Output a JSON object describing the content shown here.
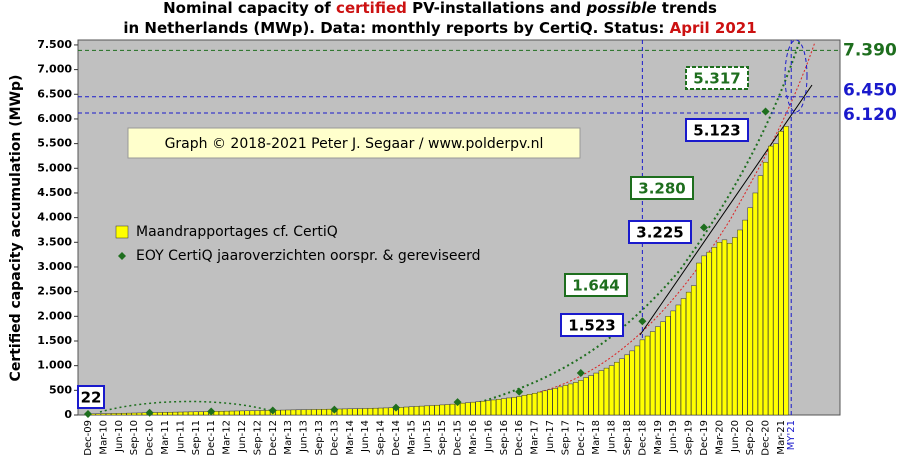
{
  "chart_data": {
    "type": "bar",
    "title_segments": [
      "Nominal capacity of ",
      "certified",
      " PV-installations and ",
      "possible",
      " trends",
      "in Netherlands (MWp). Data: monthly reports by CertiQ. Status: ",
      "April 2021"
    ],
    "y_label": "Certified capacity accumulation (MWp)",
    "credit": "Graph © 2018-2021 Peter J. Segaar / www.polderpv.nl",
    "categories": [
      "Dec-09",
      null,
      null,
      "Mar-10",
      null,
      null,
      "Jun-10",
      null,
      null,
      "Sep-10",
      null,
      null,
      "Dec-10",
      null,
      null,
      "Mar-11",
      null,
      null,
      "Jun-11",
      null,
      null,
      "Sep-11",
      null,
      null,
      "Dec-11",
      null,
      null,
      "Mar-12",
      null,
      null,
      "Jun-12",
      null,
      null,
      "Sep-12",
      null,
      null,
      "Dec-12",
      null,
      null,
      "Mar-13",
      null,
      null,
      "Jun-13",
      null,
      null,
      "Sep-13",
      null,
      null,
      "Dec-13",
      null,
      null,
      "Mar-14",
      null,
      null,
      "Jun-14",
      null,
      null,
      "Sep-14",
      null,
      null,
      "Dec-14",
      null,
      null,
      "Mar-15",
      null,
      null,
      "Jun-15",
      null,
      null,
      "Sep-15",
      null,
      null,
      "Dec-15",
      null,
      null,
      "Mar-16",
      null,
      null,
      "Jun-16",
      null,
      null,
      "Sep-16",
      null,
      null,
      "Dec-16",
      null,
      null,
      "Mar-17",
      null,
      null,
      "Jun-17",
      null,
      null,
      "Sep-17",
      null,
      null,
      "Dec-17",
      null,
      null,
      "Mar-18",
      null,
      null,
      "Jun-18",
      null,
      null,
      "Sep-18",
      null,
      null,
      "Dec-18",
      null,
      null,
      "Mar-19",
      null,
      null,
      "Jun-19",
      null,
      null,
      "Sep-19",
      null,
      null,
      "Dec-19",
      null,
      null,
      "Mar-20",
      null,
      null,
      "Jun-20",
      null,
      null,
      "Sep-20",
      null,
      null,
      "Dec-20",
      null,
      null,
      "Mar-21",
      null,
      "MY'21"
    ],
    "series": [
      {
        "name": "Maandrapportages cf. CertiQ",
        "type": "bar",
        "color": "#ffff00",
        "values": [
          22,
          24,
          26,
          28,
          30,
          32,
          34,
          36,
          38,
          40,
          42,
          45,
          48,
          50,
          52,
          54,
          56,
          58,
          60,
          62,
          64,
          66,
          68,
          70,
          72,
          74,
          76,
          78,
          80,
          82,
          84,
          86,
          88,
          90,
          92,
          94,
          96,
          98,
          100,
          102,
          104,
          106,
          108,
          110,
          112,
          114,
          116,
          118,
          120,
          122,
          124,
          126,
          128,
          130,
          132,
          135,
          138,
          141,
          144,
          148,
          152,
          156,
          162,
          168,
          174,
          180,
          186,
          192,
          198,
          205,
          212,
          220,
          230,
          240,
          250,
          260,
          270,
          280,
          292,
          305,
          318,
          332,
          346,
          360,
          375,
          400,
          420,
          440,
          465,
          490,
          515,
          540,
          570,
          600,
          630,
          660,
          700,
          760,
          800,
          850,
          900,
          950,
          1000,
          1070,
          1140,
          1220,
          1300,
          1400,
          1523,
          1600,
          1690,
          1790,
          1890,
          2000,
          2110,
          2230,
          2360,
          2490,
          2620,
          3080,
          3225,
          3300,
          3400,
          3500,
          3550,
          3480,
          3600,
          3750,
          3950,
          4200,
          4500,
          4850,
          5123,
          5450,
          5500,
          5750,
          5850,
          null
        ]
      },
      {
        "name": "EOY CertiQ jaaroverzichten oorspr. & gereviseerd",
        "type": "scatter",
        "color": "#1e6e1e",
        "values": [
          20,
          null,
          null,
          null,
          null,
          null,
          null,
          null,
          null,
          null,
          null,
          null,
          45,
          null,
          null,
          null,
          null,
          null,
          null,
          null,
          null,
          null,
          null,
          null,
          70,
          null,
          null,
          null,
          null,
          null,
          null,
          null,
          null,
          null,
          null,
          null,
          90,
          null,
          null,
          null,
          null,
          null,
          null,
          null,
          null,
          null,
          null,
          null,
          110,
          null,
          null,
          null,
          null,
          null,
          null,
          null,
          null,
          null,
          null,
          null,
          150,
          null,
          null,
          null,
          null,
          null,
          null,
          null,
          null,
          null,
          null,
          null,
          260,
          null,
          null,
          null,
          null,
          null,
          null,
          null,
          null,
          null,
          null,
          null,
          470,
          null,
          null,
          null,
          null,
          null,
          null,
          null,
          null,
          null,
          null,
          null,
          850,
          null,
          null,
          null,
          null,
          null,
          null,
          null,
          null,
          null,
          null,
          null,
          1900,
          null,
          null,
          null,
          null,
          null,
          null,
          null,
          null,
          null,
          null,
          null,
          3800,
          null,
          null,
          null,
          null,
          null,
          null,
          null,
          null,
          null,
          null,
          null,
          6150,
          null,
          null,
          null,
          null,
          null
        ]
      }
    ],
    "ylim": [
      0,
      7600
    ],
    "yticks": [
      0,
      500,
      {
        "value": 1000,
        "label": "1.000"
      },
      {
        "value": 1500,
        "label": "1.500"
      },
      {
        "value": 2000,
        "label": "2.000"
      },
      {
        "value": 2500,
        "label": "2.500"
      },
      {
        "value": 3000,
        "label": "3.000"
      },
      {
        "value": 3500,
        "label": "3.500"
      },
      {
        "value": 4000,
        "label": "4.000"
      },
      {
        "value": 4500,
        "label": "4.500"
      },
      {
        "value": 5000,
        "label": "5.000"
      },
      {
        "value": 5500,
        "label": "5.500"
      },
      {
        "value": 6000,
        "label": "6.000"
      },
      {
        "value": 6500,
        "label": "6.500"
      },
      {
        "value": 7000,
        "label": "7.000"
      },
      {
        "value": 7500,
        "label": "7.500"
      }
    ],
    "reference_lines": [
      {
        "value": 7390,
        "label": "7.390",
        "color": "#1e6e1e"
      },
      {
        "value": 6450,
        "label": "6.450",
        "color": "#1a1acc"
      },
      {
        "value": 6120,
        "label": "6.120",
        "color": "#1a1acc"
      }
    ],
    "annotations": [
      {
        "text": "22",
        "color": "#1a1acc"
      },
      {
        "text": "1.523",
        "color": "#1a1acc"
      },
      {
        "text": "1.644",
        "color": "#1e6e1e"
      },
      {
        "text": "3.225",
        "color": "#1a1acc"
      },
      {
        "text": "3.280",
        "color": "#1e6e1e"
      },
      {
        "text": "5.123",
        "color": "#1a1acc"
      },
      {
        "text": "5.317",
        "color": "#1e6e1e"
      }
    ]
  }
}
